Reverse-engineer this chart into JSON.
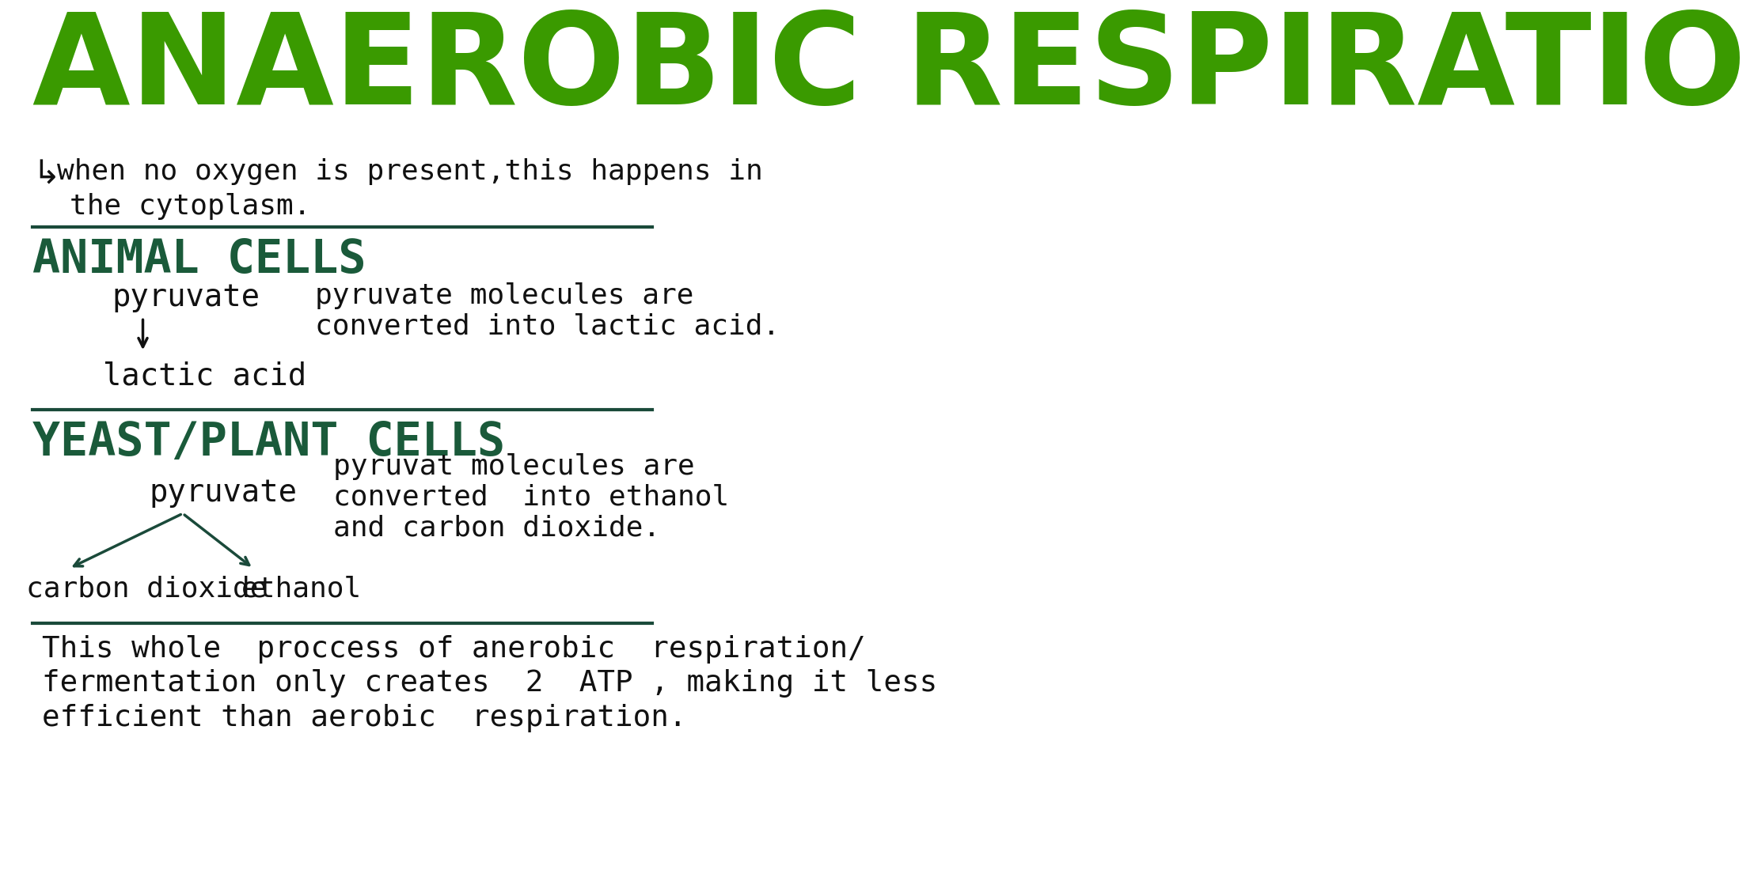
{
  "title": "ANAEROBIC RESPIRATIO",
  "title_color": "#3a9a00",
  "bg_color": "#ffffff",
  "text_color": "#111111",
  "dark_green": "#1a4a3a",
  "section_color": "#1a5a3a",
  "intro_arrow": "↳",
  "intro_line1": "when no oxygen is present,this happens in",
  "intro_line2": "the cytoplasm.",
  "section1_header": "ANIMAL CELLS",
  "section1_left_top": "pyruvate",
  "section1_left_bottom": "lactic acid",
  "section1_right_line1": "pyruvate molecules are",
  "section1_right_line2": "converted into lactic acid.",
  "section2_header": "YEAST/PLANT CELLS",
  "section2_left_top": "pyruvate",
  "section2_left_bottomleft": "carbon dioxide",
  "section2_left_bottomright": "ethanol",
  "section2_right_line1": "pyruvat molecules are",
  "section2_right_line2": "converted  into ethanol",
  "section2_right_line3": "and carbon dioxide.",
  "footer_line1": "This whole  proccess of anerobic  respiration/",
  "footer_line2": "fermentation only creates  2  ATP , making it less",
  "footer_line3": "efficient than aerobic  respiration."
}
